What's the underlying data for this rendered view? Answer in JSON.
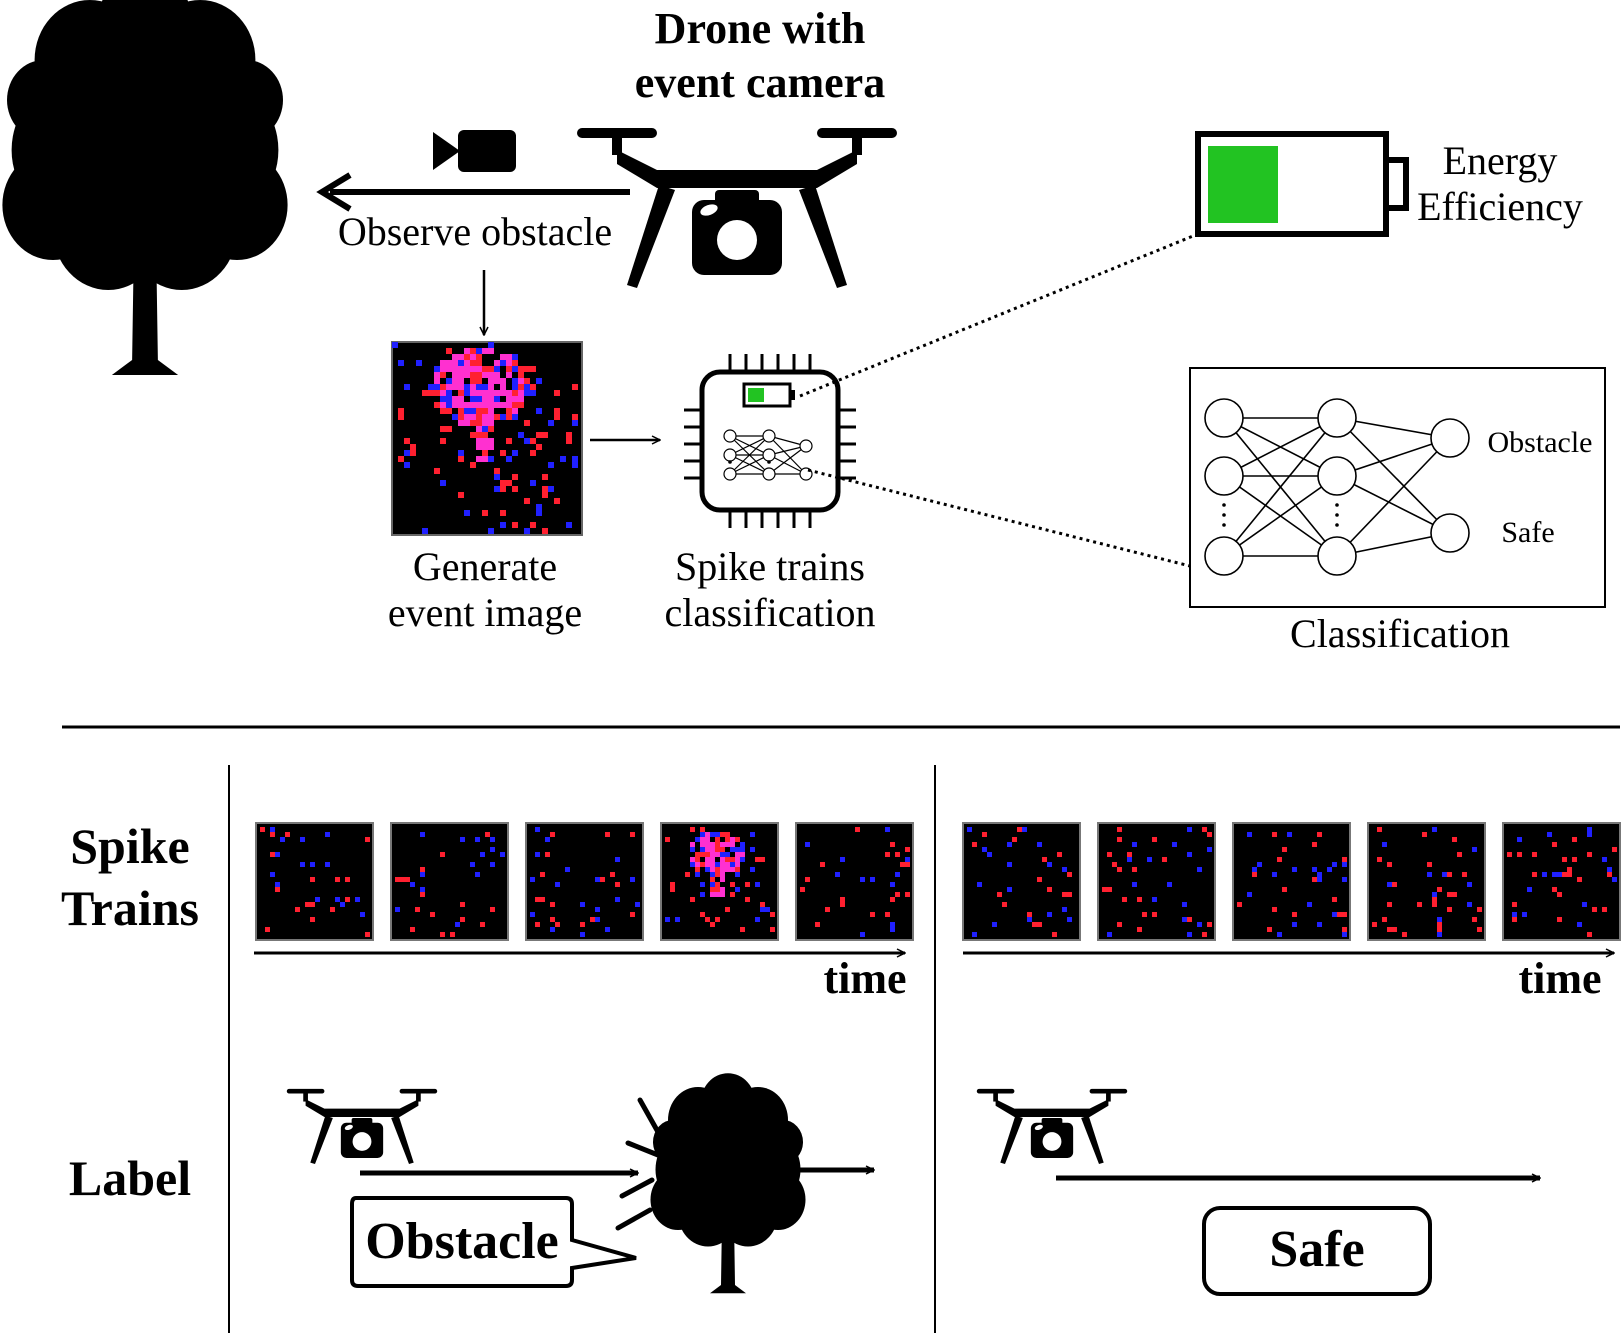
{
  "top": {
    "drone_title": [
      "Drone with",
      "event camera"
    ],
    "observe_label": "Observe obstacle",
    "event_image_label": [
      "Generate",
      "event image"
    ],
    "spike_label": [
      "Spike trains",
      "classification"
    ],
    "energy_label": [
      "Energy",
      "Efficiency"
    ],
    "classification_label": "Classification",
    "nn_outputs": [
      "Obstacle",
      "Safe"
    ]
  },
  "bottom": {
    "spike_trains_title": [
      "Spike",
      "Trains"
    ],
    "label_title": "Label",
    "time_label_left": "time",
    "time_label_right": "time",
    "obstacle_box": "Obstacle",
    "safe_box": "Safe",
    "left_sequence_frames": 5,
    "right_sequence_frames": 5,
    "obstacle_frame_index": 3
  },
  "colors": {
    "battery_green": "#22c322",
    "event_red": "#ff2030",
    "event_blue": "#2020ff",
    "event_magenta": "#ff30d0",
    "frame_bg": "#000000"
  },
  "icons": [
    "tree-icon",
    "drone-icon",
    "video-camera-icon",
    "battery-icon",
    "chip-icon",
    "neural-network-icon"
  ]
}
